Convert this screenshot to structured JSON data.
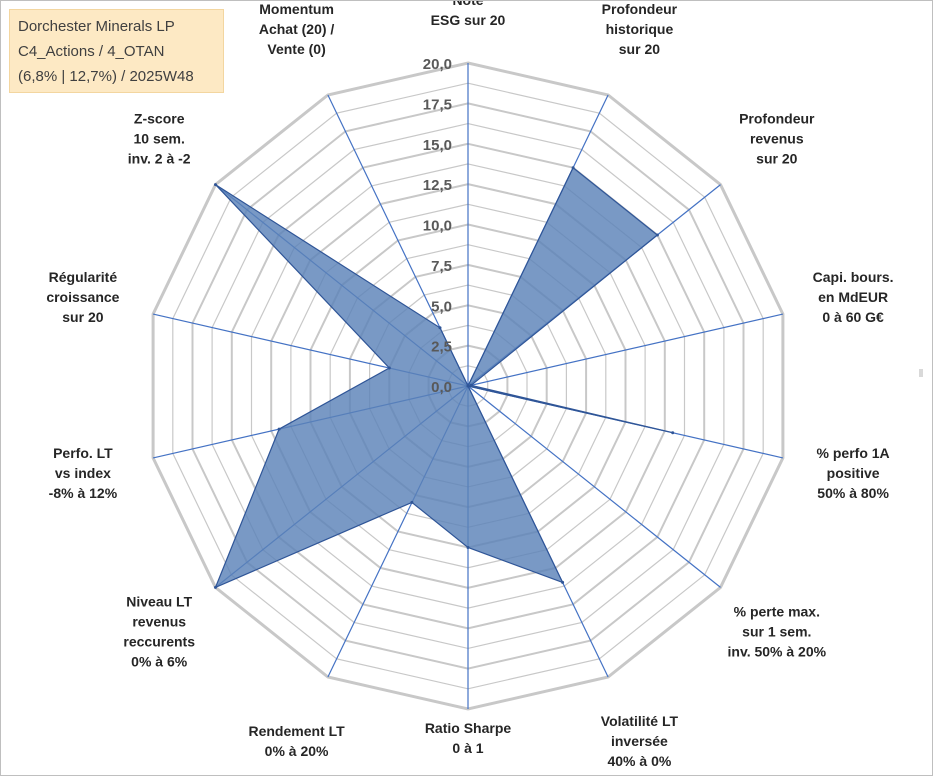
{
  "header": {
    "line1": "Dorchester Minerals LP",
    "line2": "C4_Actions / 4_OTAN",
    "line3": "(6,8% | 12,7%) / 2025W48"
  },
  "colors": {
    "fill": "#5b83b8",
    "stroke": "#2f5597",
    "axis": "#4472c4",
    "grid": "#c8c8c8"
  },
  "chart_data": {
    "type": "radar",
    "title": "Dorchester Minerals LP",
    "range": [
      0,
      20
    ],
    "ticks": [
      0,
      2.5,
      5,
      7.5,
      10,
      12.5,
      15,
      17.5,
      20
    ],
    "tick_labels": [
      "0,0",
      "2,5",
      "5,0",
      "7,5",
      "10,0",
      "12,5",
      "15,0",
      "17,5",
      "20,0"
    ],
    "axes": [
      {
        "label": [
          "Note",
          "ESG sur 20"
        ],
        "value": 0
      },
      {
        "label": [
          "Profondeur",
          "historique",
          "sur 20"
        ],
        "value": 15
      },
      {
        "label": [
          "Profondeur",
          "revenus",
          "sur 20"
        ],
        "value": 15
      },
      {
        "label": [
          "Capi. bours.",
          "en MdEUR",
          "0 à 60 G€"
        ],
        "value": 0.2
      },
      {
        "label": [
          "% perfo 1A",
          "positive",
          "50% à 80%"
        ],
        "value": 13
      },
      {
        "label": [
          "% perte max.",
          "sur 1 sem.",
          "inv. 50% à 20%"
        ],
        "value": 0
      },
      {
        "label": [
          "Volatilité LT",
          "inversée",
          "40% à 0%"
        ],
        "value": 13.5
      },
      {
        "label": [
          "Ratio Sharpe",
          "0 à 1"
        ],
        "value": 10
      },
      {
        "label": [
          "Rendement LT",
          "0% à 20%"
        ],
        "value": 8
      },
      {
        "label": [
          "Niveau LT",
          "revenus",
          "reccurents",
          "0% à 6%"
        ],
        "value": 20
      },
      {
        "label": [
          "Perfo. LT",
          "vs index",
          "-8% à 12%"
        ],
        "value": 12
      },
      {
        "label": [
          "Régularité",
          "croissance",
          "sur 20"
        ],
        "value": 5
      },
      {
        "label": [
          "Z-score",
          "10 sem.",
          "inv. 2 à -2"
        ],
        "value": 20
      },
      {
        "label": [
          "Momentum",
          "Achat (20) /",
          "Vente (0)"
        ],
        "value": 4
      }
    ]
  }
}
